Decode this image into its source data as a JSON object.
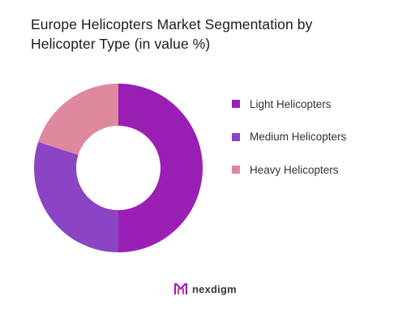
{
  "title_lines": [
    "Europe Helicopters Market Segmentation by",
    "Helicopter Type (in value %)"
  ],
  "logo": {
    "text": "nexdigm",
    "icon": "nexdigm-logo-icon"
  },
  "chart_data": {
    "type": "pie",
    "subtype": "donut",
    "title": "Europe Helicopters Market Segmentation by Helicopter Type (in value %)",
    "legend_position": "right",
    "categories": [
      "Light Helicopters",
      "Medium Helicopters",
      "Heavy Helicopters"
    ],
    "values": [
      50,
      30,
      20
    ],
    "colors": [
      "#9a1fb5",
      "#8b45c4",
      "#de889e"
    ]
  }
}
